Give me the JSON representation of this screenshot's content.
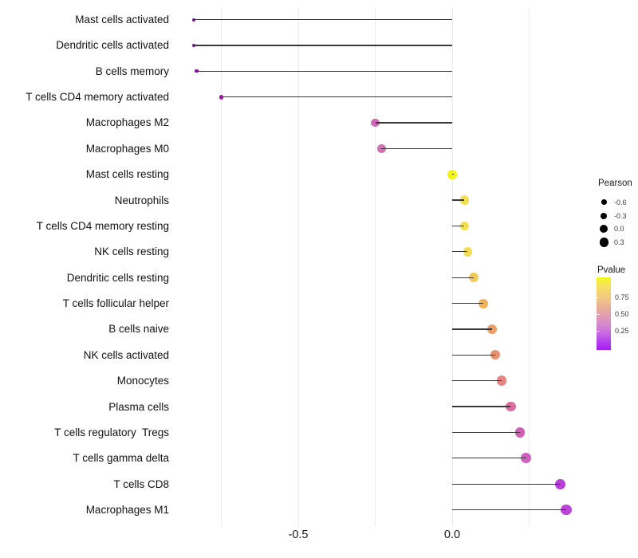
{
  "chart_data": {
    "type": "lollipop",
    "description": "Horizontal lollipop chart of Pearson correlation per immune cell type; dot size = Pearson, dot color = Pvalue (plasma-like gradient)",
    "x_axis": {
      "ticks": [
        {
          "label": "-0.5",
          "value": -0.5
        },
        {
          "label": "0.0",
          "value": 0.0
        }
      ],
      "gridline_values": [
        -0.75,
        -0.5,
        -0.25,
        0.0,
        0.25
      ],
      "baseline_value": 0.0
    },
    "rows": [
      {
        "label": "Mast cells activated",
        "pearson": -0.84,
        "color": "#7f07a8",
        "radius": 2.0
      },
      {
        "label": "Dendritic cells activated",
        "pearson": -0.84,
        "color": "#7f07a8",
        "radius": 2.0
      },
      {
        "label": "B cells memory",
        "pearson": -0.83,
        "color": "#870aa6",
        "radius": 2.2
      },
      {
        "label": "T cells CD4 memory activated",
        "pearson": -0.75,
        "color": "#9c1da6",
        "radius": 2.9
      },
      {
        "label": "Macrophages M2",
        "pearson": -0.25,
        "color": "#d068b8",
        "radius": 5.2
      },
      {
        "label": "Macrophages M0",
        "pearson": -0.23,
        "color": "#d36fb4",
        "radius": 5.4
      },
      {
        "label": "Mast cells resting",
        "pearson": 0.0,
        "color": "#f2f413",
        "radius": 5.8
      },
      {
        "label": "Neutrophils",
        "pearson": 0.04,
        "color": "#f3df52",
        "radius": 5.6
      },
      {
        "label": "T cells CD4 memory resting",
        "pearson": 0.04,
        "color": "#f3df52",
        "radius": 5.6
      },
      {
        "label": "NK cells resting",
        "pearson": 0.05,
        "color": "#f3dd55",
        "radius": 5.8
      },
      {
        "label": "Dendritic cells resting",
        "pearson": 0.07,
        "color": "#f1ca5c",
        "radius": 5.9
      },
      {
        "label": "T cells follicular helper",
        "pearson": 0.1,
        "color": "#eeb457",
        "radius": 6.0
      },
      {
        "label": "B cells naive",
        "pearson": 0.13,
        "color": "#eb9e67",
        "radius": 6.1
      },
      {
        "label": "NK cells activated",
        "pearson": 0.14,
        "color": "#e79173",
        "radius": 6.1
      },
      {
        "label": "Monocytes",
        "pearson": 0.16,
        "color": "#e38485",
        "radius": 6.2
      },
      {
        "label": "Plasma cells",
        "pearson": 0.19,
        "color": "#da6f9f",
        "radius": 6.3
      },
      {
        "label": "T cells regulatory  Tregs",
        "pearson": 0.22,
        "color": "#cf5fb4",
        "radius": 6.35
      },
      {
        "label": "T cells gamma delta",
        "pearson": 0.24,
        "color": "#d15fc0",
        "radius": 6.4
      },
      {
        "label": "T cells CD8",
        "pearson": 0.35,
        "color": "#b73ed2",
        "radius": 6.6
      },
      {
        "label": "Macrophages M1",
        "pearson": 0.37,
        "color": "#bc44d8",
        "radius": 6.8
      }
    ],
    "legend": {
      "pearson": {
        "title": "Pearson",
        "dot_color": "#000000",
        "items": [
          {
            "label": "-0.6",
            "radius": 3.3
          },
          {
            "label": "-0.3",
            "radius": 4.0
          },
          {
            "label": "0.0",
            "radius": 5.0
          },
          {
            "label": "0.3",
            "radius": 5.7
          }
        ]
      },
      "pvalue": {
        "title": "Pvalue",
        "ticks": [
          {
            "label": "0.75"
          },
          {
            "label": "0.50"
          },
          {
            "label": "0.25"
          }
        ],
        "gradient_stops": [
          {
            "color": "#f0f921",
            "pos": 0
          },
          {
            "color": "#f8e25f",
            "pos": 12
          },
          {
            "color": "#f3cb80",
            "pos": 26
          },
          {
            "color": "#eab295",
            "pos": 40
          },
          {
            "color": "#e19fae",
            "pos": 52
          },
          {
            "color": "#d586cd",
            "pos": 66
          },
          {
            "color": "#c667e2",
            "pos": 78
          },
          {
            "color": "#b33df0",
            "pos": 90
          },
          {
            "color": "#a91df5",
            "pos": 100
          }
        ]
      }
    }
  }
}
